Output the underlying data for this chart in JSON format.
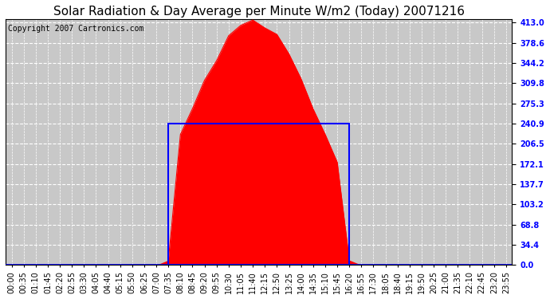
{
  "title": "Solar Radiation & Day Average per Minute W/m2 (Today) 20071216",
  "copyright": "Copyright 2007 Cartronics.com",
  "ymin": 0.0,
  "ymax": 413.0,
  "yticks": [
    0.0,
    34.4,
    68.8,
    103.2,
    137.7,
    172.1,
    206.5,
    240.9,
    275.3,
    309.8,
    344.2,
    378.6,
    413.0
  ],
  "bg_color": "#ffffff",
  "plot_bg_color": "#c8c8c8",
  "bar_color": "#ff0000",
  "avg_line_color": "#0000ff",
  "avg_line_value": 240.9,
  "rise_idx": 13,
  "set_idx": 28,
  "peak_val": 413.0,
  "title_fontsize": 11,
  "copyright_fontsize": 7,
  "tick_fontsize": 7,
  "ytick_fontsize": 7
}
